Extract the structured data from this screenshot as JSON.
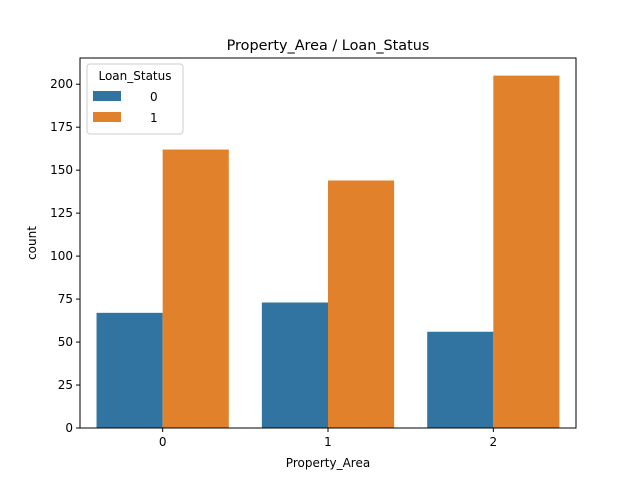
{
  "chart_data": {
    "type": "bar",
    "title": "Property_Area / Loan_Status",
    "xlabel": "Property_Area",
    "ylabel": "count",
    "categories": [
      "0",
      "1",
      "2"
    ],
    "series": [
      {
        "name": "0",
        "values": [
          67,
          73,
          56
        ],
        "color": "#3274a1"
      },
      {
        "name": "1",
        "values": [
          162,
          144,
          205
        ],
        "color": "#e1812c"
      }
    ],
    "ylim": [
      0,
      215.25
    ],
    "yticks": [
      0,
      25,
      50,
      75,
      100,
      125,
      150,
      175,
      200
    ],
    "grid": false,
    "legend": {
      "title": "Loan_Status",
      "placement": "top-left"
    }
  }
}
